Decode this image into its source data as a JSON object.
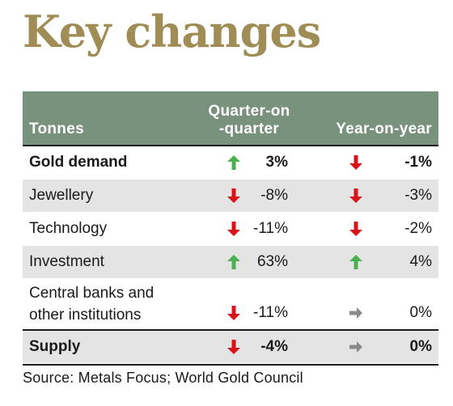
{
  "title": "Key changes",
  "table": {
    "headers": {
      "label": "Tonnes",
      "qoq_line1": "Quarter-on",
      "qoq_line2": "-quarter",
      "yoy": "Year-on-year"
    },
    "rows": [
      {
        "label": "Gold demand",
        "qoq": "3%",
        "qoq_dir": "up",
        "yoy": "-1%",
        "yoy_dir": "down",
        "bold": true
      },
      {
        "label": "Jewellery",
        "qoq": "-8%",
        "qoq_dir": "down",
        "yoy": "-3%",
        "yoy_dir": "down",
        "bold": false
      },
      {
        "label": "Technology",
        "qoq": "-11%",
        "qoq_dir": "down",
        "yoy": "-2%",
        "yoy_dir": "down",
        "bold": false
      },
      {
        "label": "Investment",
        "qoq": "63%",
        "qoq_dir": "up",
        "yoy": "4%",
        "yoy_dir": "up",
        "bold": false
      },
      {
        "label_line1": "Central banks and",
        "label_line2": "other institutions",
        "qoq": "-11%",
        "qoq_dir": "down",
        "yoy": "0%",
        "yoy_dir": "flat",
        "bold": false
      },
      {
        "label": "Supply",
        "qoq": "-4%",
        "qoq_dir": "down",
        "yoy": "0%",
        "yoy_dir": "flat",
        "bold": true
      }
    ]
  },
  "source": "Source: Metals Focus; World Gold Council",
  "colors": {
    "title": "#a08d56",
    "header_bg": "#78927d",
    "row_alt_bg": "#e4e4e4",
    "up": "#4caf50",
    "down": "#d7141a",
    "flat": "#8a8a8a"
  },
  "icons": {
    "up": "arrow-up-icon",
    "down": "arrow-down-icon",
    "flat": "arrow-right-icon"
  }
}
